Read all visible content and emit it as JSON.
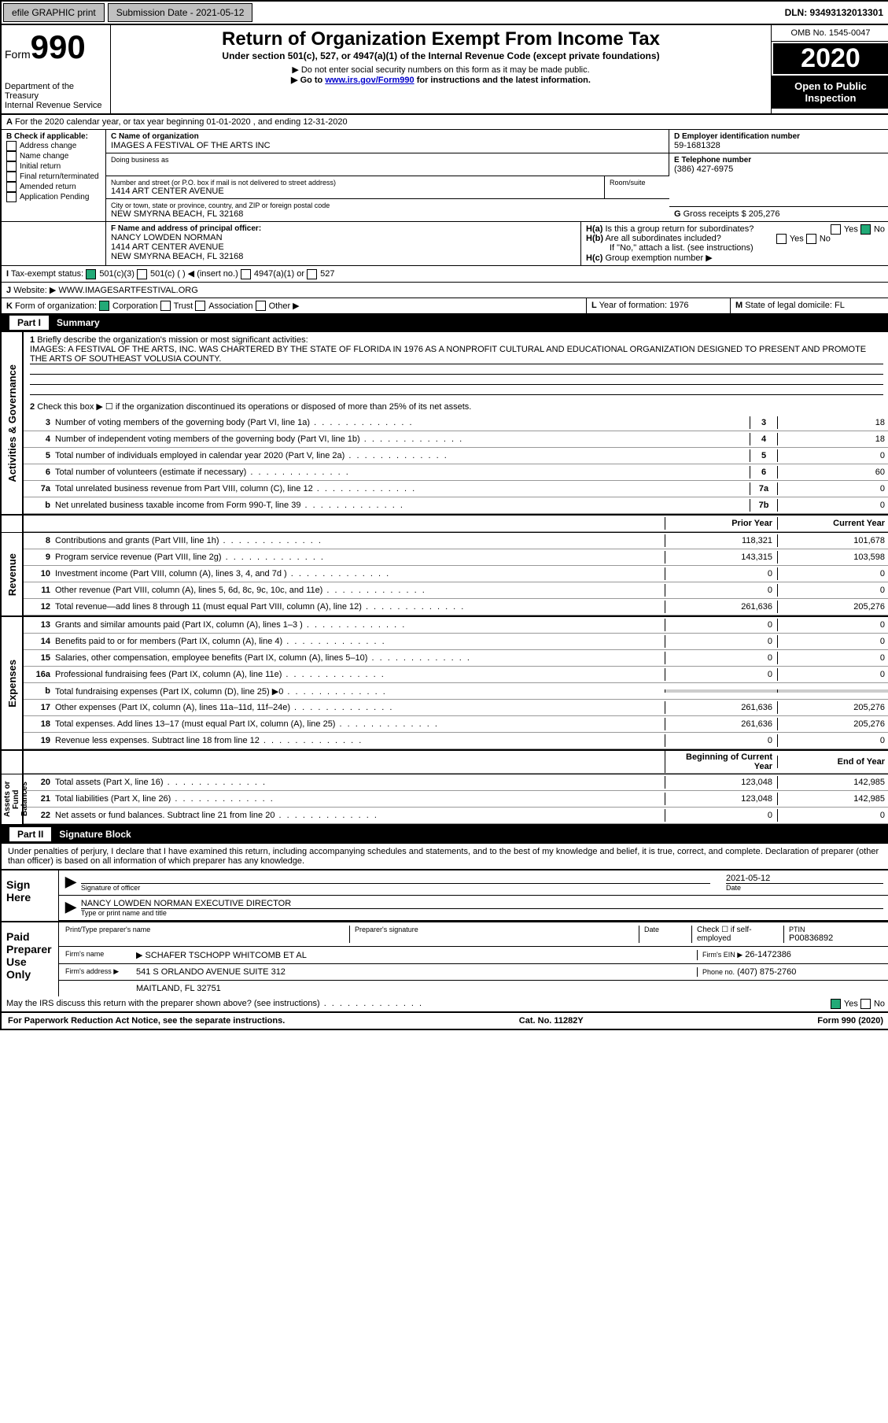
{
  "topbar": {
    "efile": "efile GRAPHIC print",
    "subdate_label": "Submission Date - 2021-05-12",
    "dln": "DLN: 93493132013301"
  },
  "header": {
    "form_label": "Form",
    "form_num": "990",
    "dept": "Department of the Treasury",
    "irs": "Internal Revenue Service",
    "title": "Return of Organization Exempt From Income Tax",
    "sub1": "Under section 501(c), 527, or 4947(a)(1) of the Internal Revenue Code (except private foundations)",
    "sub2": "▶ Do not enter social security numbers on this form as it may be made public.",
    "sub3_pre": "▶ Go to ",
    "sub3_link": "www.irs.gov/Form990",
    "sub3_post": " for instructions and the latest information.",
    "omb": "OMB No. 1545-0047",
    "year": "2020",
    "open": "Open to Public Inspection"
  },
  "A": {
    "text": "For the 2020 calendar year, or tax year beginning 01-01-2020    , and ending 12-31-2020"
  },
  "B": {
    "label": "Check if applicable:",
    "opts": [
      "Address change",
      "Name change",
      "Initial return",
      "Final return/terminated",
      "Amended return",
      "Application Pending"
    ]
  },
  "C": {
    "label": "Name of organization",
    "name": "IMAGES A FESTIVAL OF THE ARTS INC",
    "dba_label": "Doing business as",
    "dba": "",
    "addr_label": "Number and street (or P.O. box if mail is not delivered to street address)",
    "room": "Room/suite",
    "addr": "1414 ART CENTER AVENUE",
    "city_label": "City or town, state or province, country, and ZIP or foreign postal code",
    "city": "NEW SMYRNA BEACH, FL  32168"
  },
  "D": {
    "label": "Employer identification number",
    "val": "59-1681328"
  },
  "E": {
    "label": "Telephone number",
    "val": "(386) 427-6975"
  },
  "G": {
    "label": "Gross receipts $",
    "val": "205,276"
  },
  "F": {
    "label": "Name and address of principal officer:",
    "name": "NANCY LOWDEN NORMAN",
    "addr1": "1414 ART CENTER AVENUE",
    "addr2": "NEW SMYRNA BEACH, FL  32168"
  },
  "H": {
    "a": "Is this a group return for subordinates?",
    "b": "Are all subordinates included?",
    "b2": "If \"No,\" attach a list. (see instructions)",
    "c": "Group exemption number ▶",
    "yes": "Yes",
    "no": "No"
  },
  "I": {
    "label": "Tax-exempt status:",
    "c3": "501(c)(3)",
    "c": "501(c) (  ) ◀ (insert no.)",
    "a": "4947(a)(1) or",
    "five": "527"
  },
  "J": {
    "label": "Website: ▶",
    "val": "WWW.IMAGESARTFESTIVAL.ORG"
  },
  "K": {
    "label": "Form of organization:",
    "opts": [
      "Corporation",
      "Trust",
      "Association",
      "Other ▶"
    ]
  },
  "L": {
    "label": "Year of formation:",
    "val": "1976"
  },
  "M": {
    "label": "State of legal domicile:",
    "val": "FL"
  },
  "part1": {
    "title": "Part I",
    "name": "Summary"
  },
  "p1": {
    "l1a": "Briefly describe the organization's mission or most significant activities:",
    "l1b": "IMAGES: A FESTIVAL OF THE ARTS, INC. WAS CHARTERED BY THE STATE OF FLORIDA IN 1976 AS A NONPROFIT CULTURAL AND EDUCATIONAL ORGANIZATION DESIGNED TO PRESENT AND PROMOTE THE ARTS OF SOUTHEAST VOLUSIA COUNTY.",
    "l2": "Check this box ▶ ☐  if the organization discontinued its operations or disposed of more than 25% of its net assets.",
    "rows": [
      {
        "n": "3",
        "d": "Number of voting members of the governing body (Part VI, line 1a)",
        "b": "3",
        "v": "18"
      },
      {
        "n": "4",
        "d": "Number of independent voting members of the governing body (Part VI, line 1b)",
        "b": "4",
        "v": "18"
      },
      {
        "n": "5",
        "d": "Total number of individuals employed in calendar year 2020 (Part V, line 2a)",
        "b": "5",
        "v": "0"
      },
      {
        "n": "6",
        "d": "Total number of volunteers (estimate if necessary)",
        "b": "6",
        "v": "60"
      },
      {
        "n": "7a",
        "d": "Total unrelated business revenue from Part VIII, column (C), line 12",
        "b": "7a",
        "v": "0"
      },
      {
        "n": "b",
        "d": "Net unrelated business taxable income from Form 990-T, line 39",
        "b": "7b",
        "v": "0"
      }
    ]
  },
  "tblhdr": {
    "prior": "Prior Year",
    "current": "Current Year"
  },
  "revenue": {
    "label": "Revenue",
    "rows": [
      {
        "n": "8",
        "d": "Contributions and grants (Part VIII, line 1h)",
        "p": "118,321",
        "c": "101,678"
      },
      {
        "n": "9",
        "d": "Program service revenue (Part VIII, line 2g)",
        "p": "143,315",
        "c": "103,598"
      },
      {
        "n": "10",
        "d": "Investment income (Part VIII, column (A), lines 3, 4, and 7d )",
        "p": "0",
        "c": "0"
      },
      {
        "n": "11",
        "d": "Other revenue (Part VIII, column (A), lines 5, 6d, 8c, 9c, 10c, and 11e)",
        "p": "0",
        "c": "0"
      },
      {
        "n": "12",
        "d": "Total revenue—add lines 8 through 11 (must equal Part VIII, column (A), line 12)",
        "p": "261,636",
        "c": "205,276"
      }
    ]
  },
  "expenses": {
    "label": "Expenses",
    "rows": [
      {
        "n": "13",
        "d": "Grants and similar amounts paid (Part IX, column (A), lines 1–3 )",
        "p": "0",
        "c": "0"
      },
      {
        "n": "14",
        "d": "Benefits paid to or for members (Part IX, column (A), line 4)",
        "p": "0",
        "c": "0"
      },
      {
        "n": "15",
        "d": "Salaries, other compensation, employee benefits (Part IX, column (A), lines 5–10)",
        "p": "0",
        "c": "0"
      },
      {
        "n": "16a",
        "d": "Professional fundraising fees (Part IX, column (A), line 11e)",
        "p": "0",
        "c": "0"
      },
      {
        "n": "b",
        "d": "Total fundraising expenses (Part IX, column (D), line 25) ▶0",
        "p": "",
        "c": "",
        "grey": true
      },
      {
        "n": "17",
        "d": "Other expenses (Part IX, column (A), lines 11a–11d, 11f–24e)",
        "p": "261,636",
        "c": "205,276"
      },
      {
        "n": "18",
        "d": "Total expenses. Add lines 13–17 (must equal Part IX, column (A), line 25)",
        "p": "261,636",
        "c": "205,276"
      },
      {
        "n": "19",
        "d": "Revenue less expenses. Subtract line 18 from line 12",
        "p": "0",
        "c": "0"
      }
    ]
  },
  "netassets": {
    "label": "Net Assets or Fund Balances",
    "bhdr": "Beginning of Current Year",
    "ehdr": "End of Year",
    "rows": [
      {
        "n": "20",
        "d": "Total assets (Part X, line 16)",
        "p": "123,048",
        "c": "142,985"
      },
      {
        "n": "21",
        "d": "Total liabilities (Part X, line 26)",
        "p": "123,048",
        "c": "142,985"
      },
      {
        "n": "22",
        "d": "Net assets or fund balances. Subtract line 21 from line 20",
        "p": "0",
        "c": "0"
      }
    ]
  },
  "part2": {
    "title": "Part II",
    "name": "Signature Block"
  },
  "sigdecl": "Under penalties of perjury, I declare that I have examined this return, including accompanying schedules and statements, and to the best of my knowledge and belief, it is true, correct, and complete. Declaration of preparer (other than officer) is based on all information of which preparer has any knowledge.",
  "sign": {
    "side": "Sign Here",
    "sig_label": "Signature of officer",
    "date": "2021-05-12",
    "date_label": "Date",
    "name": "NANCY LOWDEN NORMAN  EXECUTIVE DIRECTOR",
    "name_label": "Type or print name and title"
  },
  "prep": {
    "side": "Paid Preparer Use Only",
    "pname_label": "Print/Type preparer's name",
    "psig_label": "Preparer's signature",
    "pdate_label": "Date",
    "check": "Check ☐ if self-employed",
    "ptin_label": "PTIN",
    "ptin": "P00836892",
    "firm_label": "Firm's name",
    "firm": "▶ SCHAFER TSCHOPP WHITCOMB ET AL",
    "ein_label": "Firm's EIN ▶",
    "ein": "26-1472386",
    "addr_label": "Firm's address ▶",
    "addr": "541 S ORLANDO AVENUE SUITE 312",
    "city": "MAITLAND, FL  32751",
    "phone_label": "Phone no.",
    "phone": "(407) 875-2760"
  },
  "discuss": {
    "q": "May the IRS discuss this return with the preparer shown above? (see instructions)",
    "yes": "Yes",
    "no": "No"
  },
  "footer": {
    "left": "For Paperwork Reduction Act Notice, see the separate instructions.",
    "mid": "Cat. No. 11282Y",
    "right": "Form 990 (2020)"
  }
}
